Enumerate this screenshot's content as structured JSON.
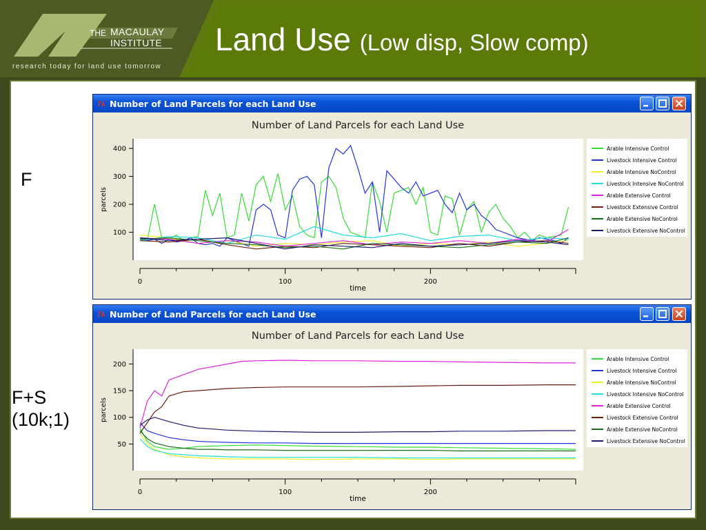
{
  "header": {
    "logo_the": "THE",
    "logo_name_1": "MACAULAY",
    "logo_name_2": "INSTITUTE",
    "logo_tagline": "research today for land use tomorrow",
    "title_main": "Land Use",
    "title_sub": "(Low disp, Slow comp)"
  },
  "labels": {
    "top": "F",
    "bottom_1": "F+S",
    "bottom_2": "(10k;1)"
  },
  "windows": [
    {
      "title_icon": "Tk",
      "title": "Number of Land Parcels for each Land Use"
    },
    {
      "title_icon": "Tk",
      "title": "Number of Land Parcels for each Land Use"
    }
  ],
  "chart_data": [
    {
      "type": "line",
      "title": "Number of Land Parcels for each Land Use",
      "xlabel": "time",
      "ylabel": "parcels",
      "xlim": [
        0,
        300
      ],
      "ylim": [
        0,
        420
      ],
      "xticks": [
        0,
        100,
        200
      ],
      "yticks": [
        100,
        200,
        300,
        400
      ],
      "legend_position": "right",
      "series": [
        {
          "name": "Arable Intensive Control",
          "color": "#33dd33",
          "x": [
            0,
            5,
            10,
            15,
            20,
            25,
            30,
            35,
            40,
            45,
            50,
            55,
            60,
            65,
            70,
            75,
            80,
            85,
            90,
            95,
            100,
            105,
            110,
            115,
            120,
            125,
            130,
            135,
            140,
            145,
            150,
            155,
            160,
            165,
            170,
            175,
            180,
            185,
            190,
            195,
            200,
            205,
            210,
            215,
            220,
            225,
            230,
            235,
            240,
            245,
            250,
            255,
            260,
            265,
            270,
            275,
            280,
            285,
            290,
            295
          ],
          "y": [
            75,
            70,
            200,
            80,
            75,
            90,
            70,
            80,
            85,
            250,
            160,
            240,
            80,
            90,
            240,
            140,
            270,
            300,
            210,
            310,
            180,
            230,
            120,
            90,
            80,
            280,
            300,
            260,
            150,
            100,
            90,
            80,
            280,
            210,
            100,
            240,
            250,
            260,
            200,
            260,
            100,
            90,
            230,
            220,
            90,
            180,
            210,
            100,
            170,
            200,
            150,
            120,
            80,
            100,
            70,
            90,
            80,
            85,
            90,
            190
          ]
        },
        {
          "name": "Livestock Intensive Control",
          "color": "#2233dd",
          "x": [
            0,
            5,
            10,
            15,
            20,
            25,
            30,
            35,
            40,
            45,
            50,
            55,
            60,
            65,
            70,
            75,
            80,
            85,
            90,
            95,
            100,
            105,
            110,
            115,
            120,
            125,
            130,
            135,
            140,
            145,
            150,
            155,
            160,
            165,
            170,
            175,
            180,
            185,
            190,
            195,
            200,
            205,
            210,
            215,
            220,
            225,
            230,
            235,
            240,
            245,
            250,
            255,
            260,
            265,
            270,
            275,
            280,
            285,
            290,
            295
          ],
          "y": [
            80,
            70,
            75,
            60,
            75,
            65,
            70,
            80,
            60,
            55,
            60,
            50,
            80,
            70,
            60,
            50,
            180,
            200,
            180,
            90,
            80,
            250,
            290,
            300,
            270,
            80,
            330,
            400,
            380,
            410,
            330,
            240,
            280,
            100,
            320,
            290,
            260,
            240,
            280,
            230,
            240,
            250,
            200,
            170,
            240,
            180,
            200,
            160,
            140,
            110,
            100,
            90,
            80,
            75,
            70,
            80,
            75,
            70,
            60,
            80
          ]
        },
        {
          "name": "Arable Intensive NoControl",
          "color": "#eeee22",
          "x": [
            0,
            20,
            40,
            60,
            80,
            100,
            120,
            140,
            160,
            180,
            200,
            220,
            240,
            260,
            280,
            295
          ],
          "y": [
            90,
            80,
            60,
            70,
            50,
            60,
            55,
            65,
            70,
            50,
            60,
            55,
            65,
            50,
            60,
            70
          ]
        },
        {
          "name": "Livestock Intensive NoControl",
          "color": "#22dddd",
          "x": [
            0,
            20,
            40,
            60,
            80,
            100,
            120,
            140,
            160,
            180,
            200,
            220,
            240,
            260,
            280,
            295
          ],
          "y": [
            70,
            85,
            80,
            60,
            90,
            75,
            120,
            90,
            80,
            95,
            70,
            85,
            90,
            70,
            80,
            75
          ]
        },
        {
          "name": "Arable Extensive Control",
          "color": "#dd22dd",
          "x": [
            0,
            20,
            40,
            60,
            80,
            100,
            120,
            140,
            160,
            180,
            200,
            220,
            240,
            260,
            280,
            295
          ],
          "y": [
            80,
            75,
            60,
            70,
            65,
            50,
            60,
            70,
            55,
            65,
            60,
            70,
            60,
            75,
            65,
            110
          ]
        },
        {
          "name": "Livestock Extensive Control",
          "color": "#6b1d10",
          "x": [
            0,
            20,
            40,
            60,
            80,
            100,
            120,
            140,
            160,
            180,
            200,
            220,
            240,
            260,
            280,
            295
          ],
          "y": [
            70,
            65,
            75,
            55,
            40,
            50,
            45,
            60,
            55,
            50,
            45,
            60,
            50,
            65,
            70,
            60
          ]
        },
        {
          "name": "Arable Extensive NoControl",
          "color": "#1a6b1a",
          "x": [
            0,
            20,
            40,
            60,
            80,
            100,
            120,
            140,
            160,
            180,
            200,
            220,
            240,
            260,
            280,
            295
          ],
          "y": [
            75,
            80,
            70,
            60,
            55,
            45,
            50,
            40,
            60,
            55,
            50,
            45,
            55,
            65,
            60,
            80
          ]
        },
        {
          "name": "Livestock Extensive NoControl",
          "color": "#1a1a6b",
          "x": [
            0,
            20,
            40,
            60,
            80,
            100,
            120,
            140,
            160,
            180,
            200,
            220,
            240,
            260,
            280,
            295
          ],
          "y": [
            80,
            70,
            75,
            80,
            60,
            40,
            55,
            50,
            45,
            60,
            50,
            55,
            60,
            70,
            65,
            55
          ]
        }
      ]
    },
    {
      "type": "line",
      "title": "Number of Land Parcels for each Land Use",
      "xlabel": "time",
      "ylabel": "parcels",
      "xlim": [
        0,
        300
      ],
      "ylim": [
        0,
        220
      ],
      "xticks": [
        0,
        100,
        200
      ],
      "yticks": [
        50,
        100,
        150,
        200
      ],
      "legend_position": "right",
      "series": [
        {
          "name": "Arable Intensive Control",
          "color": "#33dd33",
          "x": [
            0,
            5,
            10,
            20,
            30,
            40,
            50,
            60,
            80,
            100,
            120,
            150,
            180,
            200,
            220,
            250,
            280,
            300
          ],
          "y": [
            80,
            55,
            45,
            40,
            42,
            45,
            46,
            47,
            48,
            47,
            46,
            45,
            44,
            44,
            43,
            42,
            41,
            40
          ]
        },
        {
          "name": "Livestock Intensive Control",
          "color": "#2233dd",
          "x": [
            0,
            5,
            10,
            20,
            30,
            40,
            50,
            60,
            80,
            100,
            120,
            150,
            180,
            200,
            220,
            250,
            280,
            300
          ],
          "y": [
            90,
            75,
            70,
            62,
            58,
            55,
            54,
            53,
            52,
            52,
            51,
            51,
            51,
            51,
            51,
            51,
            51,
            51
          ]
        },
        {
          "name": "Arable Intensive NoControl",
          "color": "#eeee22",
          "x": [
            0,
            5,
            10,
            20,
            30,
            40,
            50,
            60,
            80,
            100,
            120,
            150,
            180,
            200,
            220,
            250,
            280,
            300
          ],
          "y": [
            70,
            50,
            40,
            30,
            26,
            24,
            23,
            22,
            22,
            22,
            21,
            22,
            22,
            21,
            22,
            22,
            22,
            22
          ]
        },
        {
          "name": "Livestock Intensive NoControl",
          "color": "#22dddd",
          "x": [
            0,
            5,
            10,
            20,
            30,
            40,
            50,
            60,
            80,
            100,
            120,
            150,
            180,
            200,
            220,
            250,
            280,
            300
          ],
          "y": [
            60,
            45,
            38,
            32,
            30,
            28,
            27,
            26,
            25,
            25,
            25,
            25,
            24,
            24,
            24,
            24,
            24,
            24
          ]
        },
        {
          "name": "Arable Extensive Control",
          "color": "#dd22dd",
          "x": [
            0,
            5,
            10,
            15,
            20,
            30,
            40,
            50,
            60,
            70,
            80,
            100,
            120,
            150,
            180,
            200,
            220,
            250,
            280,
            300
          ],
          "y": [
            80,
            130,
            150,
            140,
            170,
            180,
            190,
            195,
            200,
            205,
            206,
            207,
            206,
            206,
            205,
            205,
            204,
            203,
            202,
            202
          ]
        },
        {
          "name": "Livestock Extensive Control",
          "color": "#6b1d10",
          "x": [
            0,
            5,
            10,
            15,
            20,
            30,
            40,
            50,
            60,
            70,
            80,
            100,
            120,
            150,
            180,
            200,
            220,
            250,
            280,
            300
          ],
          "y": [
            70,
            90,
            110,
            120,
            140,
            148,
            150,
            152,
            154,
            155,
            156,
            157,
            157,
            157,
            158,
            159,
            160,
            160,
            161,
            161
          ]
        },
        {
          "name": "Arable Extensive NoControl",
          "color": "#1a6b1a",
          "x": [
            0,
            5,
            10,
            20,
            30,
            40,
            50,
            60,
            80,
            100,
            120,
            150,
            180,
            200,
            220,
            250,
            280,
            300
          ],
          "y": [
            75,
            60,
            52,
            45,
            42,
            40,
            40,
            39,
            39,
            38,
            38,
            38,
            38,
            38,
            37,
            37,
            37,
            37
          ]
        },
        {
          "name": "Livestock Extensive NoControl",
          "color": "#1a1a6b",
          "x": [
            0,
            5,
            10,
            20,
            30,
            40,
            50,
            60,
            80,
            100,
            120,
            150,
            180,
            200,
            220,
            250,
            280,
            300
          ],
          "y": [
            85,
            95,
            100,
            92,
            85,
            80,
            78,
            76,
            74,
            73,
            72,
            72,
            73,
            73,
            74,
            74,
            75,
            75
          ]
        }
      ]
    }
  ]
}
